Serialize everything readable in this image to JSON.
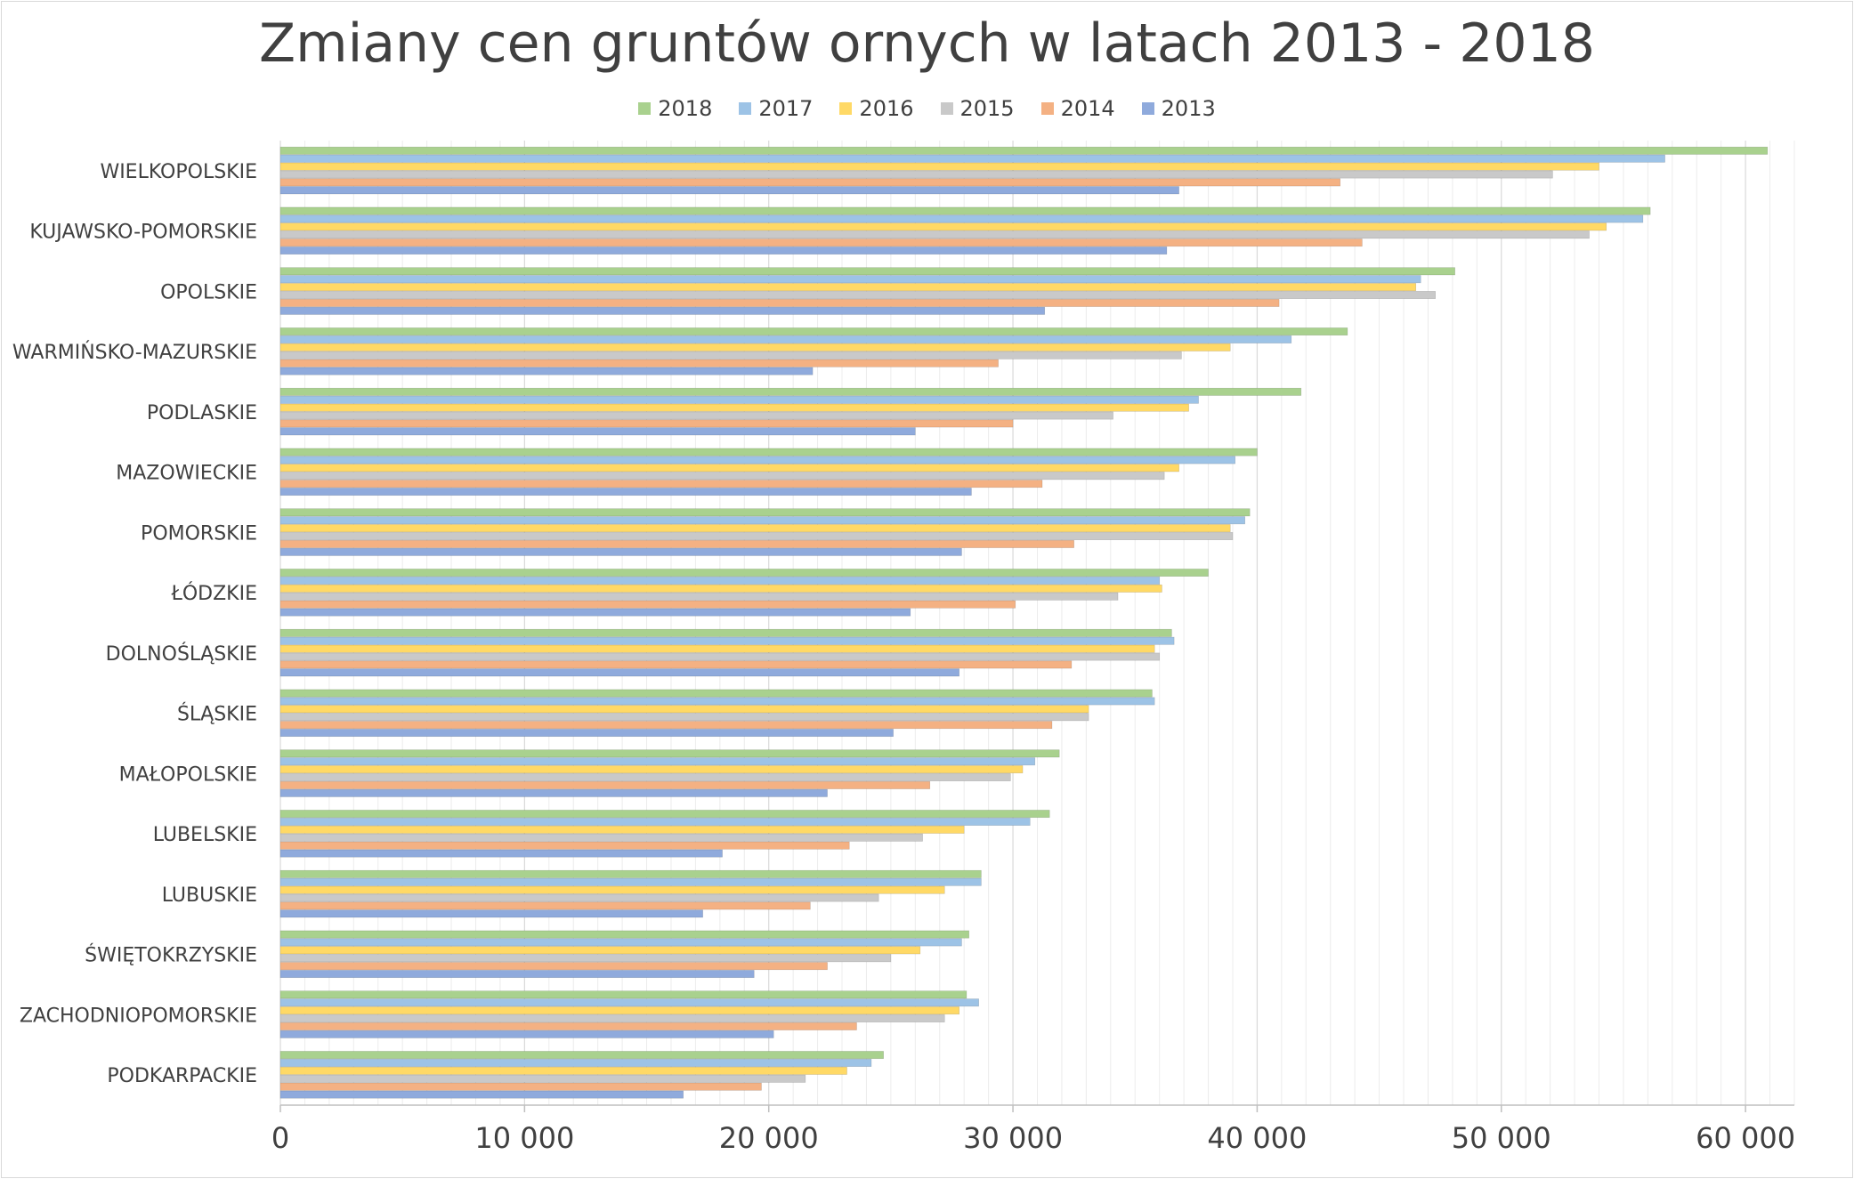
{
  "chart_data": {
    "type": "bar",
    "orientation": "horizontal",
    "title": "Zmiany cen gruntów ornych w latach 2013 - 2018",
    "xlim": [
      0,
      62000
    ],
    "xticks": [
      0,
      10000,
      20000,
      30000,
      40000,
      50000,
      60000
    ],
    "xtick_labels": [
      "0",
      "10 000",
      "20 000",
      "30 000",
      "40 000",
      "50 000",
      "60 000"
    ],
    "grid": "vertical minor gridlines",
    "legend_position": "top",
    "categories": [
      "WIELKOPOLSKIE",
      "KUJAWSKO-POMORSKIE",
      "OPOLSKIE",
      "WARMIŃSKO-MAZURSKIE",
      "PODLASKIE",
      "MAZOWIECKIE",
      "POMORSKIE",
      "ŁÓDZKIE",
      "DOLNOŚLĄSKIE",
      "ŚLĄSKIE",
      "MAŁOPOLSKIE",
      "LUBELSKIE",
      "LUBUSKIE",
      "ŚWIĘTOKRZYSKIE",
      "ZACHODNIOPOMORSKIE",
      "PODKARPACKIE"
    ],
    "series": [
      {
        "name": "2018",
        "color": "#a9d18e",
        "values": [
          60900,
          56100,
          48100,
          43700,
          41800,
          40000,
          39700,
          38000,
          36500,
          35700,
          31900,
          31500,
          28700,
          28200,
          28100,
          24700
        ]
      },
      {
        "name": "2017",
        "color": "#9dc3e6",
        "values": [
          56700,
          55800,
          46700,
          41400,
          37600,
          39100,
          39500,
          36000,
          36600,
          35800,
          30900,
          30700,
          28700,
          27900,
          28600,
          24200
        ]
      },
      {
        "name": "2016",
        "color": "#ffd966",
        "values": [
          54000,
          54300,
          46500,
          38900,
          37200,
          36800,
          38900,
          36100,
          35800,
          33100,
          30400,
          28000,
          27200,
          26200,
          27800,
          23200
        ]
      },
      {
        "name": "2015",
        "color": "#c9c9c9",
        "values": [
          52100,
          53600,
          47300,
          36900,
          34100,
          36200,
          39000,
          34300,
          36000,
          33100,
          29900,
          26300,
          24500,
          25000,
          27200,
          21500
        ]
      },
      {
        "name": "2014",
        "color": "#f4b183",
        "values": [
          43400,
          44300,
          40900,
          29400,
          30000,
          31200,
          32500,
          30100,
          32400,
          31600,
          26600,
          23300,
          21700,
          22400,
          23600,
          19700
        ]
      },
      {
        "name": "2013",
        "color": "#8faadc",
        "values": [
          36800,
          36300,
          31300,
          21800,
          26000,
          28300,
          27900,
          25800,
          27800,
          25100,
          22400,
          18100,
          17300,
          19400,
          20200,
          16500
        ]
      }
    ]
  }
}
